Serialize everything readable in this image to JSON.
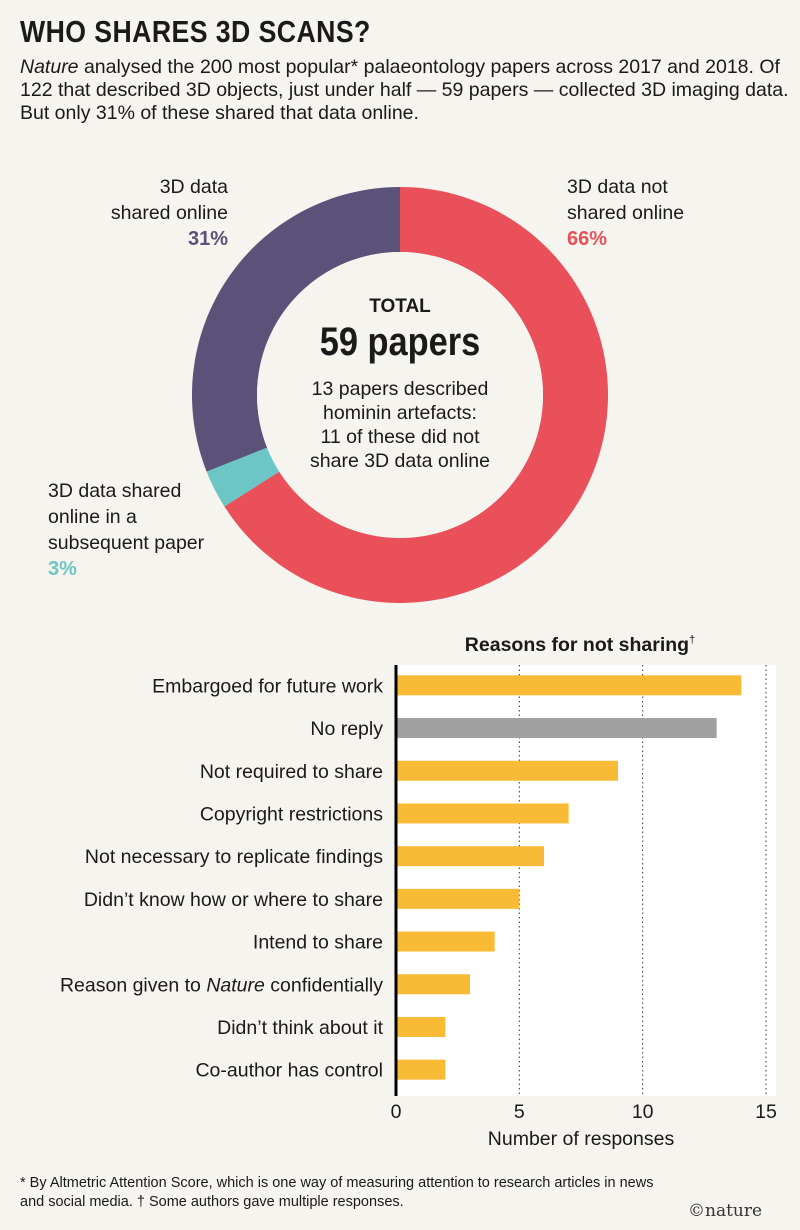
{
  "title": "WHO SHARES 3D SCANS?",
  "intro": {
    "italic": "Nature",
    "text": " analysed the 200 most popular* palaeontology papers across 2017 and 2018. Of 122 that described 3D objects, just under half — 59 papers — collected 3D imaging data. But only 31% of these shared that data online."
  },
  "colors": {
    "red": "#e9505a",
    "purple": "#5a5279",
    "teal": "#6cc6c6",
    "yellow": "#f9bb35",
    "gray": "#a0a0a0",
    "bg": "#f5f4ee"
  },
  "chart_data": [
    {
      "type": "pie",
      "donut": true,
      "center": {
        "label": "TOTAL",
        "value": "59 papers",
        "note": [
          "13 papers described",
          "hominin artefacts:",
          "11 of these did not",
          "share 3D data online"
        ]
      },
      "slices": [
        {
          "label_lines": [
            "3D data not",
            "shared online"
          ],
          "pct_label": "66%",
          "value": 66,
          "color": "#e9505a"
        },
        {
          "label_lines": [
            "3D data shared",
            "online in a",
            "subsequent paper"
          ],
          "pct_label": "3%",
          "value": 3,
          "color": "#6cc6c6"
        },
        {
          "label_lines": [
            "3D data",
            "shared online"
          ],
          "pct_label": "31%",
          "value": 31,
          "color": "#5a5279"
        }
      ]
    },
    {
      "type": "bar",
      "orientation": "horizontal",
      "title": "Reasons for not sharing",
      "title_mark": "†",
      "xlabel": "Number of responses",
      "xlim": [
        0,
        15
      ],
      "xticks": [
        0,
        5,
        10,
        15
      ],
      "grid": "vertical dotted",
      "categories": [
        "Embargoed for future work",
        "No reply",
        "Not required to share",
        "Copyright restrictions",
        "Not necessary to replicate findings",
        "Didn’t know how or where to share",
        "Intend to share",
        "Reason given to Nature confidentially",
        "Didn’t think about it",
        "Co-author has control"
      ],
      "values": [
        14,
        13,
        9,
        7,
        6,
        5,
        4,
        3,
        2,
        2
      ],
      "highlight": {
        "category": "No reply",
        "color": "#a0a0a0"
      }
    }
  ],
  "footnote": "* By Altmetric Attention Score, which is one way of measuring attention to research articles in news and social media. † Some authors gave multiple responses.",
  "logo": "©nature"
}
